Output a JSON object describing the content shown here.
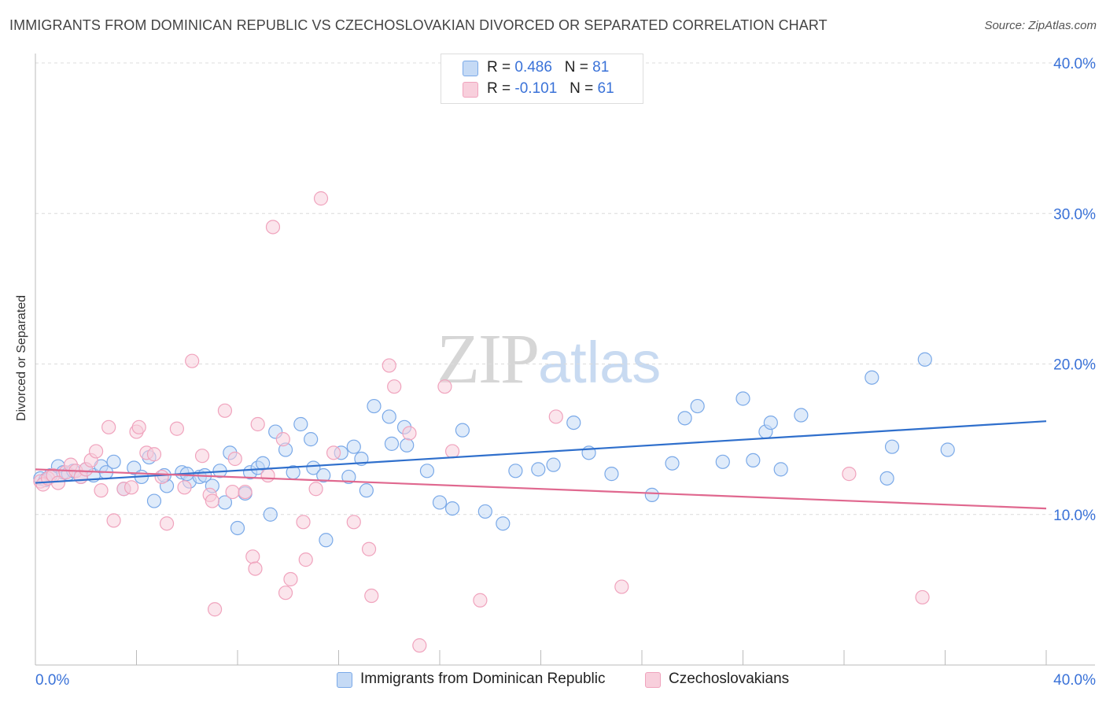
{
  "title": "IMMIGRANTS FROM DOMINICAN REPUBLIC VS CZECHOSLOVAKIAN DIVORCED OR SEPARATED CORRELATION CHART",
  "source": "Source: ZipAtlas.com",
  "watermark": {
    "zip": "ZIP",
    "atlas": "atlas"
  },
  "legend_top": [
    {
      "r_label": "R =",
      "r_value": "0.486",
      "n_label": "N =",
      "n_value": "81"
    },
    {
      "r_label": "R =",
      "r_value": "-0.101",
      "n_label": "N =",
      "n_value": "61"
    }
  ],
  "legend_bottom": [
    {
      "label": "Immigrants from Dominican Republic"
    },
    {
      "label": "Czechoslovakians"
    }
  ],
  "chart_data": {
    "type": "scatter",
    "ylabel": "Divorced or Separated",
    "xlabel": "",
    "xlim": [
      0,
      40
    ],
    "ylim": [
      0,
      40
    ],
    "x_tick_labels": [
      "0.0%",
      "40.0%"
    ],
    "y_tick_labels": [
      {
        "value": 10,
        "label": "10.0%"
      },
      {
        "value": 20,
        "label": "20.0%"
      },
      {
        "value": 30,
        "label": "30.0%"
      },
      {
        "value": 40,
        "label": "40.0%"
      }
    ],
    "grid": "horizontal dashed",
    "series": [
      {
        "name": "Immigrants from Dominican Republic",
        "color": "#7aa9e8",
        "fill": "#c5daf5",
        "trend": {
          "x": [
            0,
            40
          ],
          "y": [
            12.1,
            16.2
          ],
          "color": "#2f6fcc"
        },
        "points": [
          [
            0.2,
            12.4
          ],
          [
            0.4,
            12.3
          ],
          [
            0.6,
            12.6
          ],
          [
            0.9,
            13.2
          ],
          [
            1.1,
            12.8
          ],
          [
            1.3,
            12.7
          ],
          [
            1.5,
            12.9
          ],
          [
            1.8,
            12.5
          ],
          [
            2.0,
            13.0
          ],
          [
            2.3,
            12.6
          ],
          [
            2.6,
            13.2
          ],
          [
            2.8,
            12.8
          ],
          [
            3.1,
            13.5
          ],
          [
            3.5,
            11.7
          ],
          [
            3.9,
            13.1
          ],
          [
            4.2,
            12.5
          ],
          [
            4.5,
            13.8
          ],
          [
            4.7,
            10.9
          ],
          [
            5.2,
            11.9
          ],
          [
            5.1,
            12.6
          ],
          [
            5.8,
            12.8
          ],
          [
            6.1,
            12.2
          ],
          [
            6.5,
            12.5
          ],
          [
            6.7,
            12.6
          ],
          [
            7.0,
            11.9
          ],
          [
            7.3,
            12.9
          ],
          [
            7.5,
            10.8
          ],
          [
            7.7,
            14.1
          ],
          [
            8.0,
            9.1
          ],
          [
            8.3,
            11.4
          ],
          [
            8.5,
            12.8
          ],
          [
            8.8,
            13.1
          ],
          [
            9.0,
            13.4
          ],
          [
            9.3,
            10.0
          ],
          [
            9.5,
            15.5
          ],
          [
            9.9,
            14.3
          ],
          [
            10.2,
            12.8
          ],
          [
            10.5,
            16.0
          ],
          [
            10.9,
            15.0
          ],
          [
            11.0,
            13.1
          ],
          [
            11.4,
            12.6
          ],
          [
            11.5,
            8.3
          ],
          [
            12.1,
            14.1
          ],
          [
            12.4,
            12.5
          ],
          [
            12.6,
            14.5
          ],
          [
            12.9,
            13.7
          ],
          [
            13.1,
            11.6
          ],
          [
            13.4,
            17.2
          ],
          [
            14.0,
            16.5
          ],
          [
            14.1,
            14.7
          ],
          [
            14.6,
            15.8
          ],
          [
            14.7,
            14.6
          ],
          [
            16.0,
            10.8
          ],
          [
            16.5,
            10.4
          ],
          [
            16.9,
            15.6
          ],
          [
            17.8,
            10.2
          ],
          [
            18.5,
            9.4
          ],
          [
            19.0,
            12.9
          ],
          [
            19.9,
            13.0
          ],
          [
            20.5,
            13.3
          ],
          [
            21.3,
            16.1
          ],
          [
            21.9,
            14.1
          ],
          [
            22.8,
            12.7
          ],
          [
            24.4,
            11.3
          ],
          [
            25.2,
            13.4
          ],
          [
            25.7,
            16.4
          ],
          [
            26.2,
            17.2
          ],
          [
            27.2,
            13.5
          ],
          [
            28.0,
            17.7
          ],
          [
            28.4,
            13.6
          ],
          [
            28.9,
            15.5
          ],
          [
            29.1,
            16.1
          ],
          [
            30.3,
            16.6
          ],
          [
            33.1,
            19.1
          ],
          [
            33.7,
            12.4
          ],
          [
            33.9,
            14.5
          ],
          [
            35.2,
            20.3
          ],
          [
            36.1,
            14.3
          ],
          [
            29.5,
            13.0
          ],
          [
            15.5,
            12.9
          ],
          [
            6.0,
            12.7
          ]
        ]
      },
      {
        "name": "Czechoslovakians",
        "color": "#f0a3bd",
        "fill": "#f8cfdc",
        "trend": {
          "x": [
            0,
            40
          ],
          "y": [
            13.0,
            10.4
          ],
          "color": "#e0688f"
        },
        "points": [
          [
            0.2,
            12.2
          ],
          [
            0.3,
            12.0
          ],
          [
            0.5,
            12.4
          ],
          [
            0.7,
            12.6
          ],
          [
            0.9,
            12.1
          ],
          [
            1.2,
            12.8
          ],
          [
            1.4,
            13.3
          ],
          [
            1.6,
            12.9
          ],
          [
            1.8,
            12.5
          ],
          [
            2.0,
            13.0
          ],
          [
            2.2,
            13.6
          ],
          [
            2.4,
            14.2
          ],
          [
            2.6,
            11.6
          ],
          [
            2.9,
            15.8
          ],
          [
            3.1,
            9.6
          ],
          [
            3.5,
            11.7
          ],
          [
            3.8,
            11.8
          ],
          [
            4.0,
            15.5
          ],
          [
            4.1,
            15.8
          ],
          [
            4.4,
            14.1
          ],
          [
            4.7,
            14.0
          ],
          [
            5.0,
            12.5
          ],
          [
            5.2,
            9.4
          ],
          [
            5.6,
            15.7
          ],
          [
            5.9,
            11.8
          ],
          [
            6.2,
            20.2
          ],
          [
            6.6,
            13.9
          ],
          [
            6.9,
            11.3
          ],
          [
            7.0,
            10.9
          ],
          [
            7.1,
            3.7
          ],
          [
            7.5,
            16.9
          ],
          [
            7.8,
            11.5
          ],
          [
            7.9,
            13.7
          ],
          [
            8.3,
            11.5
          ],
          [
            8.6,
            7.2
          ],
          [
            8.7,
            6.4
          ],
          [
            8.8,
            16.0
          ],
          [
            9.2,
            12.6
          ],
          [
            9.4,
            29.1
          ],
          [
            9.8,
            15.0
          ],
          [
            9.9,
            4.8
          ],
          [
            10.1,
            5.7
          ],
          [
            10.6,
            9.5
          ],
          [
            10.7,
            7.0
          ],
          [
            11.1,
            11.7
          ],
          [
            11.3,
            31.0
          ],
          [
            11.8,
            14.1
          ],
          [
            12.6,
            9.5
          ],
          [
            13.2,
            7.7
          ],
          [
            13.3,
            4.6
          ],
          [
            14.0,
            19.9
          ],
          [
            14.2,
            18.5
          ],
          [
            14.8,
            15.4
          ],
          [
            15.2,
            1.3
          ],
          [
            16.2,
            18.5
          ],
          [
            16.5,
            14.2
          ],
          [
            17.6,
            4.3
          ],
          [
            20.6,
            16.5
          ],
          [
            23.2,
            5.2
          ],
          [
            32.2,
            12.7
          ],
          [
            35.1,
            4.5
          ]
        ]
      }
    ]
  }
}
